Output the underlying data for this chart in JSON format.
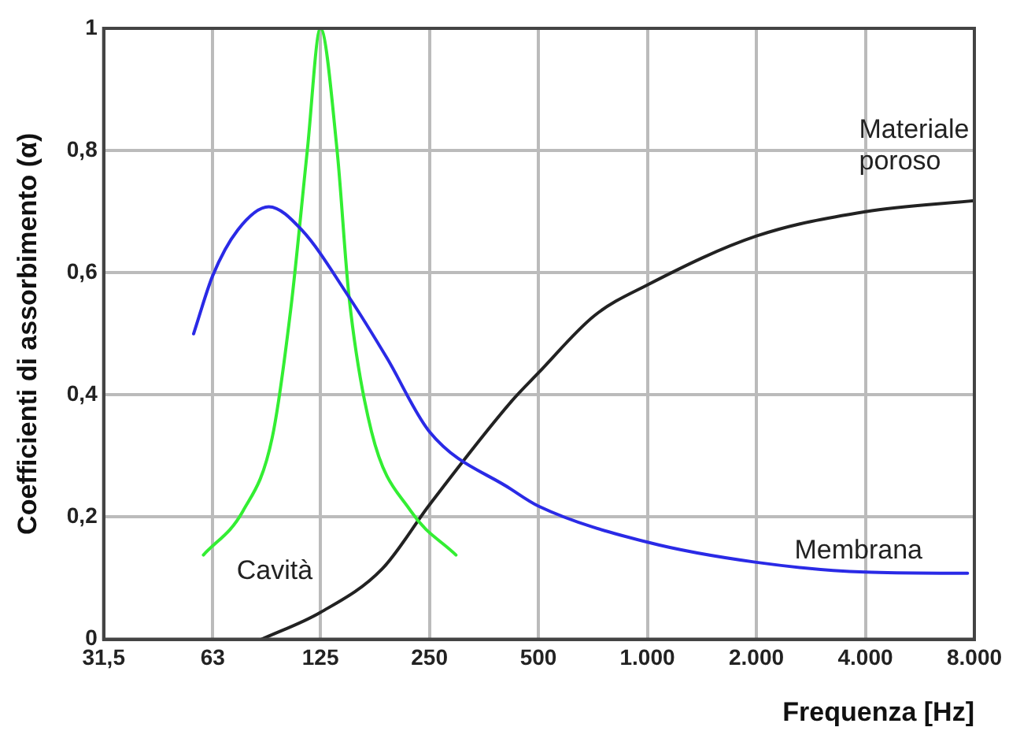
{
  "chart_data": {
    "type": "line",
    "xlabel": "Frequenza [Hz]",
    "ylabel": "Coefficienti di assorbimento (α)",
    "log": "x",
    "grid": true,
    "legend": false,
    "marker": "none",
    "line_style": "solid",
    "xlim": [
      31.5,
      8000
    ],
    "xticks": [
      {
        "value": 31.5,
        "label": "31,5"
      },
      63,
      125,
      250,
      500,
      {
        "value": 1000,
        "label": "1.000"
      },
      {
        "value": 2000,
        "label": "2.000"
      },
      {
        "value": 4000,
        "label": "4.000"
      },
      {
        "value": 8000,
        "label": "8.000"
      }
    ],
    "ylim": [
      0,
      1
    ],
    "yticks": [
      0,
      {
        "value": 0.2,
        "label": "0,2"
      },
      {
        "value": 0.4,
        "label": "0,4"
      },
      {
        "value": 0.6,
        "label": "0,6"
      },
      {
        "value": 0.8,
        "label": "0,8"
      },
      1
    ],
    "series": [
      {
        "name": "Membrana",
        "color": "#2a2ae6",
        "x": [
          55.8,
          63,
          73.9,
          90,
          111,
          150,
          191,
          250,
          422,
          500,
          1000,
          2000,
          4000,
          7660
        ],
        "values": [
          0.5,
          0.595,
          0.67,
          0.708,
          0.67,
          0.56,
          0.46,
          0.34,
          0.245,
          0.218,
          0.159,
          0.126,
          0.11,
          0.108
        ]
      },
      {
        "name": "Cavità",
        "color": "#33ee33",
        "x": [
          59.4,
          76.4,
          92,
          103.5,
          115,
          125,
          139,
          150,
          173,
          222,
          296
        ],
        "values": [
          0.138,
          0.21,
          0.33,
          0.54,
          0.8,
          1,
          0.8,
          0.56,
          0.34,
          0.21,
          0.138
        ]
      },
      {
        "name": "Materiale poroso",
        "color": "#222222",
        "x": [
          86,
          125,
          185,
          250,
          422,
          500,
          715,
          1000,
          2000,
          4000,
          8000
        ],
        "values": [
          0,
          0.044,
          0.115,
          0.22,
          0.39,
          0.436,
          0.53,
          0.58,
          0.66,
          0.7,
          0.718
        ]
      }
    ]
  }
}
